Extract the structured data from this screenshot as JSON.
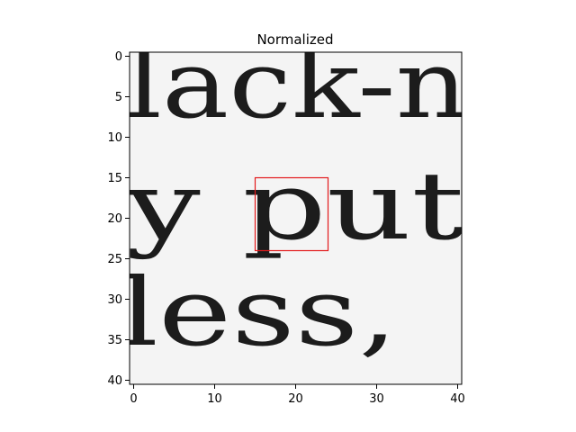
{
  "chart_data": {
    "type": "heatmap",
    "title": "Normalized",
    "xlabel": "",
    "ylabel": "",
    "xlim": [
      -0.5,
      40.5
    ],
    "ylim": [
      40.5,
      -0.5
    ],
    "xticks": [
      0,
      10,
      20,
      30,
      40
    ],
    "yticks": [
      0,
      5,
      10,
      15,
      20,
      25,
      30,
      35,
      40
    ],
    "grid": false,
    "colormap": "gray",
    "image_content": "grayscale crop of scanned text fragments: 'lack-n', 'y put', 'less,'",
    "highlight_box": {
      "x0": 15,
      "y0": 15,
      "x1": 24,
      "y1": 24,
      "color": "#e31a1c"
    }
  }
}
